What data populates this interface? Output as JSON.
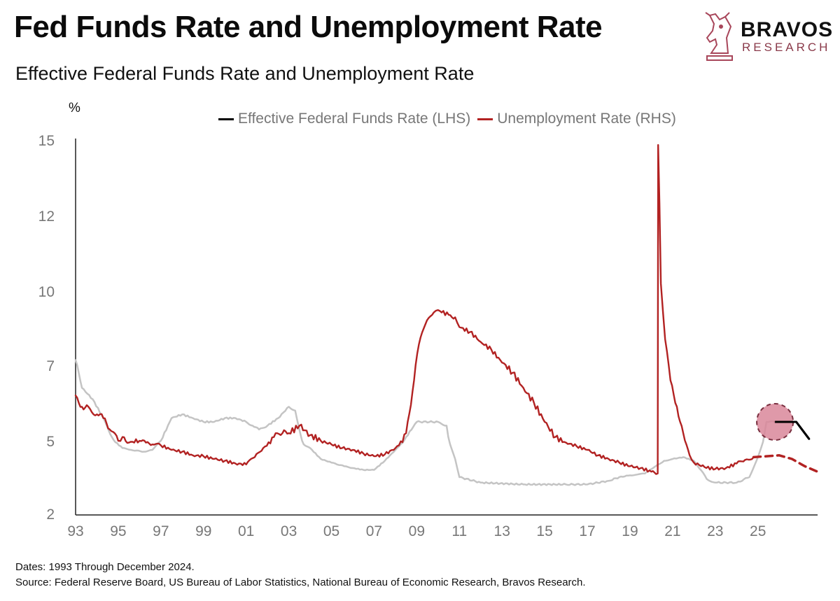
{
  "header": {
    "title": "Fed Funds Rate and Unemployment Rate",
    "subtitle": "Effective Federal Funds Rate and Unemployment Rate",
    "unit": "%"
  },
  "logo": {
    "line1": "BRAVOS",
    "line2": "RESEARCH"
  },
  "legend": [
    {
      "label": "Effective Federal Funds Rate (LHS)",
      "color": "#000000"
    },
    {
      "label": "Unemployment Rate (RHS)",
      "color": "#b22222"
    }
  ],
  "footer": {
    "dates": "Dates: 1993 Through December 2024.",
    "source": "Source: Federal Reserve Board, US Bureau of Labor Statistics, National Bureau of Economic Research, Bravos Research."
  },
  "chart_data": {
    "type": "line",
    "x_tick_labels": [
      "93",
      "95",
      "97",
      "99",
      "01",
      "03",
      "05",
      "07",
      "09",
      "11",
      "13",
      "15",
      "17",
      "19",
      "21",
      "23",
      "25"
    ],
    "y_tick_labels": [
      "15",
      "12",
      "10",
      "7",
      "5",
      "2"
    ],
    "xlim": [
      1993.0,
      2027.8
    ],
    "grid": false,
    "legend_position": "top",
    "colors": {
      "ffr": "#c4c4c4",
      "unemployment": "#b22222",
      "highlight": "#d9879a"
    },
    "series": [
      {
        "name": "Effective Federal Funds Rate (LHS)",
        "style": "solid-gray",
        "points": [
          [
            1993.0,
            7.2
          ],
          [
            1993.3,
            6.4
          ],
          [
            1993.8,
            6.1
          ],
          [
            1994.3,
            5.6
          ],
          [
            1994.7,
            5.1
          ],
          [
            1995.2,
            4.6
          ],
          [
            1995.6,
            4.5
          ],
          [
            1996.2,
            4.4
          ],
          [
            1996.6,
            4.5
          ],
          [
            1997.0,
            5.0
          ],
          [
            1997.5,
            5.6
          ],
          [
            1998.0,
            5.7
          ],
          [
            1998.5,
            5.6
          ],
          [
            1999.0,
            5.5
          ],
          [
            1999.5,
            5.5
          ],
          [
            2000.0,
            5.6
          ],
          [
            2000.5,
            5.6
          ],
          [
            2001.0,
            5.5
          ],
          [
            2001.3,
            5.4
          ],
          [
            2001.6,
            5.3
          ],
          [
            2002.0,
            5.4
          ],
          [
            2002.5,
            5.6
          ],
          [
            2003.0,
            5.9
          ],
          [
            2003.3,
            5.8
          ],
          [
            2003.7,
            4.8
          ],
          [
            2004.0,
            4.6
          ],
          [
            2004.5,
            4.0
          ],
          [
            2005.0,
            3.8
          ],
          [
            2005.6,
            3.6
          ],
          [
            2006.0,
            3.5
          ],
          [
            2006.5,
            3.4
          ],
          [
            2007.0,
            3.4
          ],
          [
            2007.5,
            3.9
          ],
          [
            2008.0,
            4.5
          ],
          [
            2008.5,
            5.1
          ],
          [
            2009.0,
            5.5
          ],
          [
            2010.0,
            5.5
          ],
          [
            2010.4,
            5.4
          ],
          [
            2010.8,
            4.0
          ],
          [
            2011.0,
            3.0
          ],
          [
            2012.0,
            2.85
          ],
          [
            2014.0,
            2.8
          ],
          [
            2016.0,
            2.8
          ],
          [
            2017.0,
            2.8
          ],
          [
            2018.0,
            2.9
          ],
          [
            2019.0,
            3.1
          ],
          [
            2019.7,
            3.2
          ],
          [
            2020.2,
            3.6
          ],
          [
            2020.6,
            3.9
          ],
          [
            2021.0,
            4.0
          ],
          [
            2021.5,
            4.1
          ],
          [
            2022.0,
            3.9
          ],
          [
            2022.6,
            2.95
          ],
          [
            2023.0,
            2.85
          ],
          [
            2024.0,
            2.85
          ],
          [
            2024.6,
            3.0
          ],
          [
            2025.0,
            4.1
          ],
          [
            2025.4,
            5.5
          ],
          [
            2025.8,
            5.5
          ]
        ]
      },
      {
        "name": "Effective Federal Funds Rate (LHS) projection",
        "style": "solid-black",
        "points": [
          [
            2025.8,
            5.5
          ],
          [
            2026.4,
            5.5
          ],
          [
            2026.8,
            5.5
          ],
          [
            2027.2,
            5.2
          ],
          [
            2027.4,
            5.05
          ]
        ]
      },
      {
        "name": "Unemployment Rate (RHS)",
        "style": "solid-red",
        "points": [
          [
            1993.0,
            6.2
          ],
          [
            1993.3,
            5.9
          ],
          [
            1993.6,
            5.9
          ],
          [
            1994.0,
            5.7
          ],
          [
            1994.3,
            5.6
          ],
          [
            1994.6,
            5.3
          ],
          [
            1995.0,
            5.0
          ],
          [
            1995.2,
            5.1
          ],
          [
            1995.5,
            4.9
          ],
          [
            1996.0,
            5.0
          ],
          [
            1996.3,
            4.9
          ],
          [
            1996.6,
            4.8
          ],
          [
            1997.0,
            4.75
          ],
          [
            1997.5,
            4.5
          ],
          [
            1998.0,
            4.4
          ],
          [
            1998.5,
            4.2
          ],
          [
            1999.0,
            4.15
          ],
          [
            1999.5,
            4.0
          ],
          [
            2000.0,
            3.9
          ],
          [
            2000.5,
            3.75
          ],
          [
            2001.0,
            3.7
          ],
          [
            2001.4,
            4.1
          ],
          [
            2001.8,
            4.6
          ],
          [
            2002.3,
            5.1
          ],
          [
            2002.7,
            5.2
          ],
          [
            2003.0,
            5.2
          ],
          [
            2003.5,
            5.4
          ],
          [
            2004.0,
            5.15
          ],
          [
            2004.5,
            5.0
          ],
          [
            2005.0,
            4.8
          ],
          [
            2005.5,
            4.6
          ],
          [
            2006.0,
            4.5
          ],
          [
            2006.5,
            4.3
          ],
          [
            2007.0,
            4.15
          ],
          [
            2007.5,
            4.25
          ],
          [
            2008.0,
            4.6
          ],
          [
            2008.5,
            5.2
          ],
          [
            2008.8,
            6.3
          ],
          [
            2009.1,
            7.8
          ],
          [
            2009.4,
            8.6
          ],
          [
            2009.8,
            9.1
          ],
          [
            2010.0,
            9.2
          ],
          [
            2010.5,
            9.0
          ],
          [
            2010.8,
            8.9
          ],
          [
            2011.0,
            8.5
          ],
          [
            2011.5,
            8.3
          ],
          [
            2012.0,
            7.9
          ],
          [
            2012.5,
            7.6
          ],
          [
            2013.0,
            7.1
          ],
          [
            2013.5,
            6.8
          ],
          [
            2014.0,
            6.4
          ],
          [
            2014.5,
            6.0
          ],
          [
            2015.0,
            5.5
          ],
          [
            2015.5,
            5.1
          ],
          [
            2016.0,
            4.9
          ],
          [
            2016.5,
            4.7
          ],
          [
            2017.0,
            4.5
          ],
          [
            2017.5,
            4.2
          ],
          [
            2018.0,
            4.0
          ],
          [
            2018.5,
            3.8
          ],
          [
            2019.0,
            3.6
          ],
          [
            2019.5,
            3.5
          ],
          [
            2020.0,
            3.3
          ],
          [
            2020.3,
            3.2
          ],
          [
            2020.32,
            14.8
          ],
          [
            2020.45,
            10.2
          ],
          [
            2020.65,
            8.0
          ],
          [
            2020.9,
            6.6
          ],
          [
            2021.2,
            5.9
          ],
          [
            2021.5,
            5.2
          ],
          [
            2021.8,
            4.2
          ],
          [
            2022.0,
            3.8
          ],
          [
            2022.5,
            3.55
          ],
          [
            2023.0,
            3.45
          ],
          [
            2023.5,
            3.5
          ],
          [
            2024.0,
            3.75
          ],
          [
            2024.4,
            3.95
          ],
          [
            2024.8,
            4.1
          ]
        ]
      },
      {
        "name": "Unemployment Rate (RHS) projection",
        "style": "dashed-red",
        "points": [
          [
            2024.8,
            4.1
          ],
          [
            2025.4,
            4.15
          ],
          [
            2026.0,
            4.2
          ],
          [
            2026.6,
            4.0
          ],
          [
            2027.2,
            3.6
          ],
          [
            2027.8,
            3.3
          ]
        ]
      }
    ],
    "highlight": {
      "x": 2025.8,
      "y": 5.5,
      "style": "dashed-circle"
    }
  }
}
